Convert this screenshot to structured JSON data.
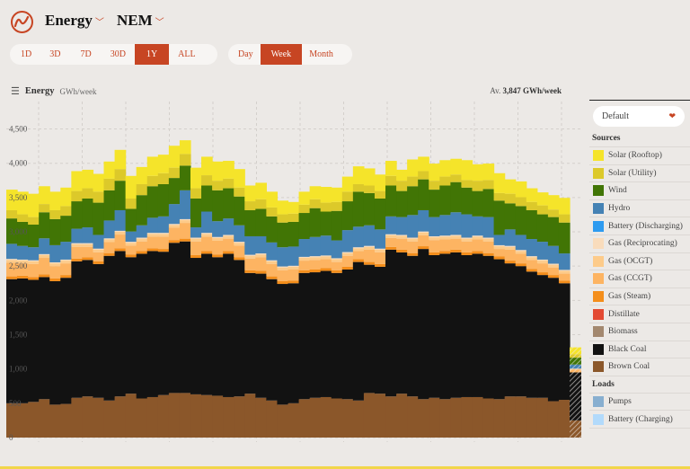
{
  "header": {
    "logo": "OpenNEM",
    "metric": "Energy",
    "region": "NEM"
  },
  "range_buttons": [
    {
      "label": "1D"
    },
    {
      "label": "3D"
    },
    {
      "label": "7D"
    },
    {
      "label": "30D"
    },
    {
      "label": "1Y",
      "active": true
    },
    {
      "label": "ALL"
    }
  ],
  "interval_buttons": [
    {
      "label": "Day"
    },
    {
      "label": "Week",
      "active": true
    },
    {
      "label": "Month"
    }
  ],
  "chart_header": {
    "title": "Energy",
    "unit": "GWh/week",
    "average_prefix": "Av.",
    "average_value": "3,847 GWh/week"
  },
  "sidebar": {
    "dropdown": "Default",
    "sources_heading": "Sources",
    "loads_heading": "Loads",
    "sources": [
      {
        "label": "Solar (Rooftop)",
        "color": "#f5e42a"
      },
      {
        "label": "Solar (Utility)",
        "color": "#dcc92a"
      },
      {
        "label": "Wind",
        "color": "#417505"
      },
      {
        "label": "Hydro",
        "color": "#4582b4"
      },
      {
        "label": "Battery (Discharging)",
        "color": "#2e9bf0"
      },
      {
        "label": "Gas (Reciprocating)",
        "color": "#f9dcbc"
      },
      {
        "label": "Gas (OCGT)",
        "color": "#fdcb8a"
      },
      {
        "label": "Gas (CCGT)",
        "color": "#fdb462"
      },
      {
        "label": "Gas (Steam)",
        "color": "#f48e1b"
      },
      {
        "label": "Distillate",
        "color": "#e34a33"
      },
      {
        "label": "Biomass",
        "color": "#a3886f"
      },
      {
        "label": "Black Coal",
        "color": "#121212"
      },
      {
        "label": "Brown Coal",
        "color": "#8b572a"
      }
    ],
    "loads": [
      {
        "label": "Pumps",
        "color": "#88afd0"
      },
      {
        "label": "Battery (Charging)",
        "color": "#b2dafb"
      }
    ]
  },
  "chart_data": {
    "type": "bar",
    "stacked": true,
    "ylabel": "GWh/week",
    "ylim": [
      0,
      4900
    ],
    "yticks": [
      "0",
      "500",
      "1,000",
      "1,500",
      "2,000",
      "2,500",
      "3,000",
      "3,500",
      "4,000",
      "4,500"
    ],
    "ytick_values": [
      0,
      500,
      1000,
      1500,
      2000,
      2500,
      3000,
      3500,
      4000,
      4500
    ],
    "grid": true,
    "last_bar_partial": true,
    "series": [
      {
        "name": "Brown Coal",
        "color": "#8b572a",
        "values": [
          500,
          500,
          520,
          560,
          480,
          490,
          580,
          600,
          580,
          540,
          600,
          640,
          570,
          590,
          620,
          650,
          650,
          630,
          620,
          610,
          590,
          600,
          640,
          580,
          540,
          480,
          500,
          560,
          580,
          590,
          570,
          560,
          540,
          650,
          640,
          600,
          640,
          600,
          560,
          580,
          560,
          580,
          590,
          590,
          570,
          560,
          600,
          600,
          580,
          580,
          530,
          550,
          250
        ]
      },
      {
        "name": "Black Coal",
        "color": "#121212",
        "values": [
          1810,
          1820,
          1780,
          1780,
          1800,
          1840,
          1990,
          1990,
          1950,
          2110,
          2120,
          1990,
          2110,
          2130,
          2090,
          2190,
          2210,
          1990,
          2060,
          2020,
          2090,
          1990,
          1760,
          1810,
          1770,
          1760,
          1750,
          1840,
          1830,
          1840,
          1830,
          1890,
          2020,
          1870,
          1850,
          2140,
          2060,
          2050,
          2190,
          2080,
          2120,
          2120,
          2070,
          2090,
          2080,
          2040,
          1940,
          1900,
          1840,
          1790,
          1800,
          1700,
          700
        ]
      },
      {
        "name": "Gas (Steam)",
        "color": "#f48e1b",
        "values": [
          40,
          40,
          40,
          40,
          40,
          40,
          40,
          40,
          40,
          40,
          40,
          40,
          40,
          40,
          40,
          40,
          40,
          40,
          40,
          40,
          40,
          40,
          40,
          40,
          40,
          40,
          40,
          40,
          40,
          40,
          40,
          40,
          40,
          40,
          40,
          40,
          40,
          40,
          40,
          40,
          40,
          40,
          40,
          40,
          40,
          40,
          40,
          40,
          40,
          40,
          40,
          40,
          0
        ]
      },
      {
        "name": "Gas (CCGT)",
        "color": "#fdb462",
        "values": [
          200,
          180,
          190,
          240,
          180,
          170,
          170,
          150,
          130,
          160,
          200,
          130,
          140,
          170,
          180,
          180,
          230,
          200,
          210,
          200,
          180,
          170,
          170,
          200,
          180,
          160,
          160,
          140,
          140,
          130,
          120,
          160,
          120,
          180,
          170,
          130,
          160,
          170,
          160,
          180,
          170,
          160,
          160,
          170,
          170,
          110,
          160,
          140,
          130,
          130,
          110,
          100,
          40
        ]
      },
      {
        "name": "Gas (OCGT)",
        "color": "#fdcb8a",
        "values": [
          40,
          40,
          40,
          40,
          40,
          40,
          40,
          40,
          40,
          40,
          40,
          40,
          40,
          40,
          40,
          40,
          40,
          40,
          40,
          40,
          40,
          40,
          40,
          40,
          40,
          40,
          40,
          40,
          40,
          40,
          40,
          40,
          40,
          40,
          40,
          40,
          40,
          40,
          40,
          40,
          40,
          40,
          40,
          40,
          40,
          40,
          40,
          40,
          40,
          40,
          40,
          40,
          10
        ]
      },
      {
        "name": "Gas (Reciprocating)",
        "color": "#f9dcbc",
        "values": [
          15,
          15,
          15,
          15,
          15,
          15,
          15,
          15,
          15,
          15,
          15,
          15,
          15,
          15,
          15,
          15,
          15,
          15,
          15,
          15,
          15,
          15,
          15,
          15,
          15,
          15,
          15,
          15,
          15,
          15,
          15,
          15,
          15,
          15,
          15,
          15,
          15,
          15,
          15,
          15,
          15,
          15,
          15,
          15,
          15,
          15,
          15,
          15,
          15,
          15,
          15,
          15,
          5
        ]
      },
      {
        "name": "Hydro",
        "color": "#4582b4",
        "values": [
          220,
          200,
          190,
          230,
          250,
          260,
          210,
          230,
          200,
          260,
          300,
          150,
          180,
          220,
          240,
          290,
          420,
          150,
          310,
          230,
          240,
          240,
          270,
          250,
          260,
          280,
          280,
          260,
          280,
          290,
          260,
          320,
          300,
          300,
          280,
          260,
          260,
          330,
          310,
          280,
          300,
          330,
          340,
          280,
          300,
          150,
          240,
          220,
          250,
          260,
          260,
          240,
          60
        ]
      },
      {
        "name": "Wind",
        "color": "#417505",
        "values": [
          370,
          350,
          330,
          380,
          380,
          380,
          400,
          420,
          470,
          440,
          430,
          330,
          440,
          460,
          470,
          380,
          360,
          420,
          380,
          450,
          440,
          420,
          380,
          400,
          380,
          360,
          360,
          380,
          420,
          350,
          430,
          420,
          510,
          470,
          450,
          450,
          380,
          420,
          450,
          400,
          430,
          440,
          390,
          370,
          410,
          500,
          380,
          420,
          420,
          400,
          420,
          450,
          100
        ]
      },
      {
        "name": "Solar (Utility)",
        "color": "#dcc92a",
        "values": [
          120,
          110,
          110,
          120,
          130,
          140,
          150,
          150,
          160,
          170,
          170,
          150,
          160,
          150,
          160,
          150,
          170,
          150,
          150,
          140,
          140,
          130,
          130,
          140,
          130,
          120,
          120,
          120,
          130,
          130,
          130,
          140,
          110,
          110,
          110,
          140,
          150,
          140,
          120,
          130,
          130,
          110,
          110,
          150,
          130,
          110,
          140,
          130,
          120,
          130,
          110,
          120,
          50
        ]
      },
      {
        "name": "Solar (Rooftop)",
        "color": "#f5e42a",
        "values": [
          300,
          330,
          340,
          260,
          270,
          270,
          290,
          270,
          260,
          250,
          280,
          330,
          250,
          280,
          270,
          320,
          200,
          300,
          270,
          280,
          260,
          270,
          230,
          240,
          230,
          200,
          170,
          190,
          190,
          230,
          210,
          220,
          260,
          250,
          240,
          220,
          160,
          250,
          210,
          250,
          240,
          230,
          290,
          240,
          240,
          290,
          210,
          230,
          200,
          190,
          210,
          240,
          100
        ]
      }
    ]
  }
}
